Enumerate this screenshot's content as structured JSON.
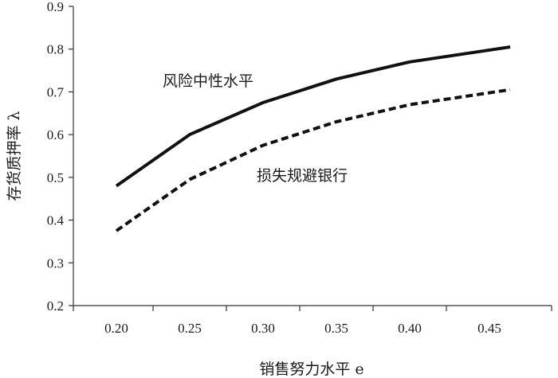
{
  "chart_data": {
    "type": "line",
    "xlabel": "销售努力水平 e",
    "ylabel": "存货质押率 λ",
    "x": [
      0.2,
      0.25,
      0.3,
      0.35,
      0.4,
      0.45
    ],
    "xticks": [
      "0.20",
      "0.25",
      "0.30",
      "0.35",
      "0.40",
      "0.45"
    ],
    "yticks": [
      "0.2",
      "0.3",
      "0.4",
      "0.5",
      "0.6",
      "0.7",
      "0.8",
      "0.9"
    ],
    "ylim": [
      0.2,
      0.9
    ],
    "grid": false,
    "series": [
      {
        "name": "风险中性水平",
        "style": "solid",
        "values": [
          0.48,
          0.6,
          0.675,
          0.73,
          0.77,
          0.805
        ]
      },
      {
        "name": "损失规避银行",
        "style": "dashed",
        "values": [
          0.375,
          0.495,
          0.575,
          0.63,
          0.67,
          0.705
        ]
      }
    ],
    "annotations": [
      "风险中性水平",
      "损失规避银行"
    ]
  }
}
